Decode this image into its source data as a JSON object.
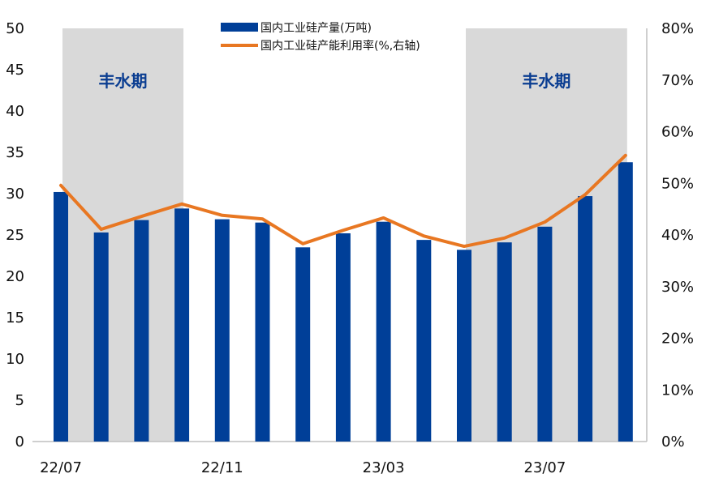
{
  "chart_data": {
    "type": "bar+line",
    "categories": [
      "22/07",
      "22/08",
      "22/09",
      "22/10",
      "22/11",
      "22/12",
      "23/01",
      "23/02",
      "23/03",
      "23/04",
      "23/05",
      "23/06",
      "23/07",
      "23/08",
      "23/09"
    ],
    "x_tick_labels": [
      "22/07",
      "22/11",
      "23/03",
      "23/07"
    ],
    "series": [
      {
        "name": "国内工业硅产量(万吨)",
        "type": "bar",
        "axis": "left",
        "color": "#003f98",
        "values": [
          30.2,
          25.3,
          26.8,
          28.2,
          26.9,
          26.5,
          23.5,
          25.2,
          26.6,
          24.4,
          23.2,
          24.1,
          26.0,
          29.7,
          33.8
        ]
      },
      {
        "name": "国内工业硅产能利用率(%,右轴)",
        "type": "line",
        "axis": "right",
        "color": "#e87722",
        "values": [
          49.6,
          41.1,
          43.6,
          46.0,
          43.8,
          43.1,
          38.3,
          40.9,
          43.3,
          39.8,
          37.8,
          39.4,
          42.5,
          47.8,
          55.4
        ]
      }
    ],
    "left_axis": {
      "ylim": [
        0,
        50
      ],
      "ticks": [
        "0",
        "5",
        "10",
        "15",
        "20",
        "25",
        "30",
        "35",
        "40",
        "45",
        "50"
      ]
    },
    "right_axis": {
      "ylim": [
        0,
        80
      ],
      "ticks": [
        "0%",
        "10%",
        "20%",
        "30%",
        "40%",
        "50%",
        "60%",
        "70%",
        "80%"
      ]
    },
    "shaded_periods": [
      {
        "label": "丰水期",
        "from": "22/07",
        "to": "22/10",
        "color": "#d9d9d9"
      },
      {
        "label": "丰水期",
        "from": "23/05",
        "to": "23/09",
        "color": "#d9d9d9"
      }
    ],
    "legend_position": "top-center",
    "grid": false
  }
}
